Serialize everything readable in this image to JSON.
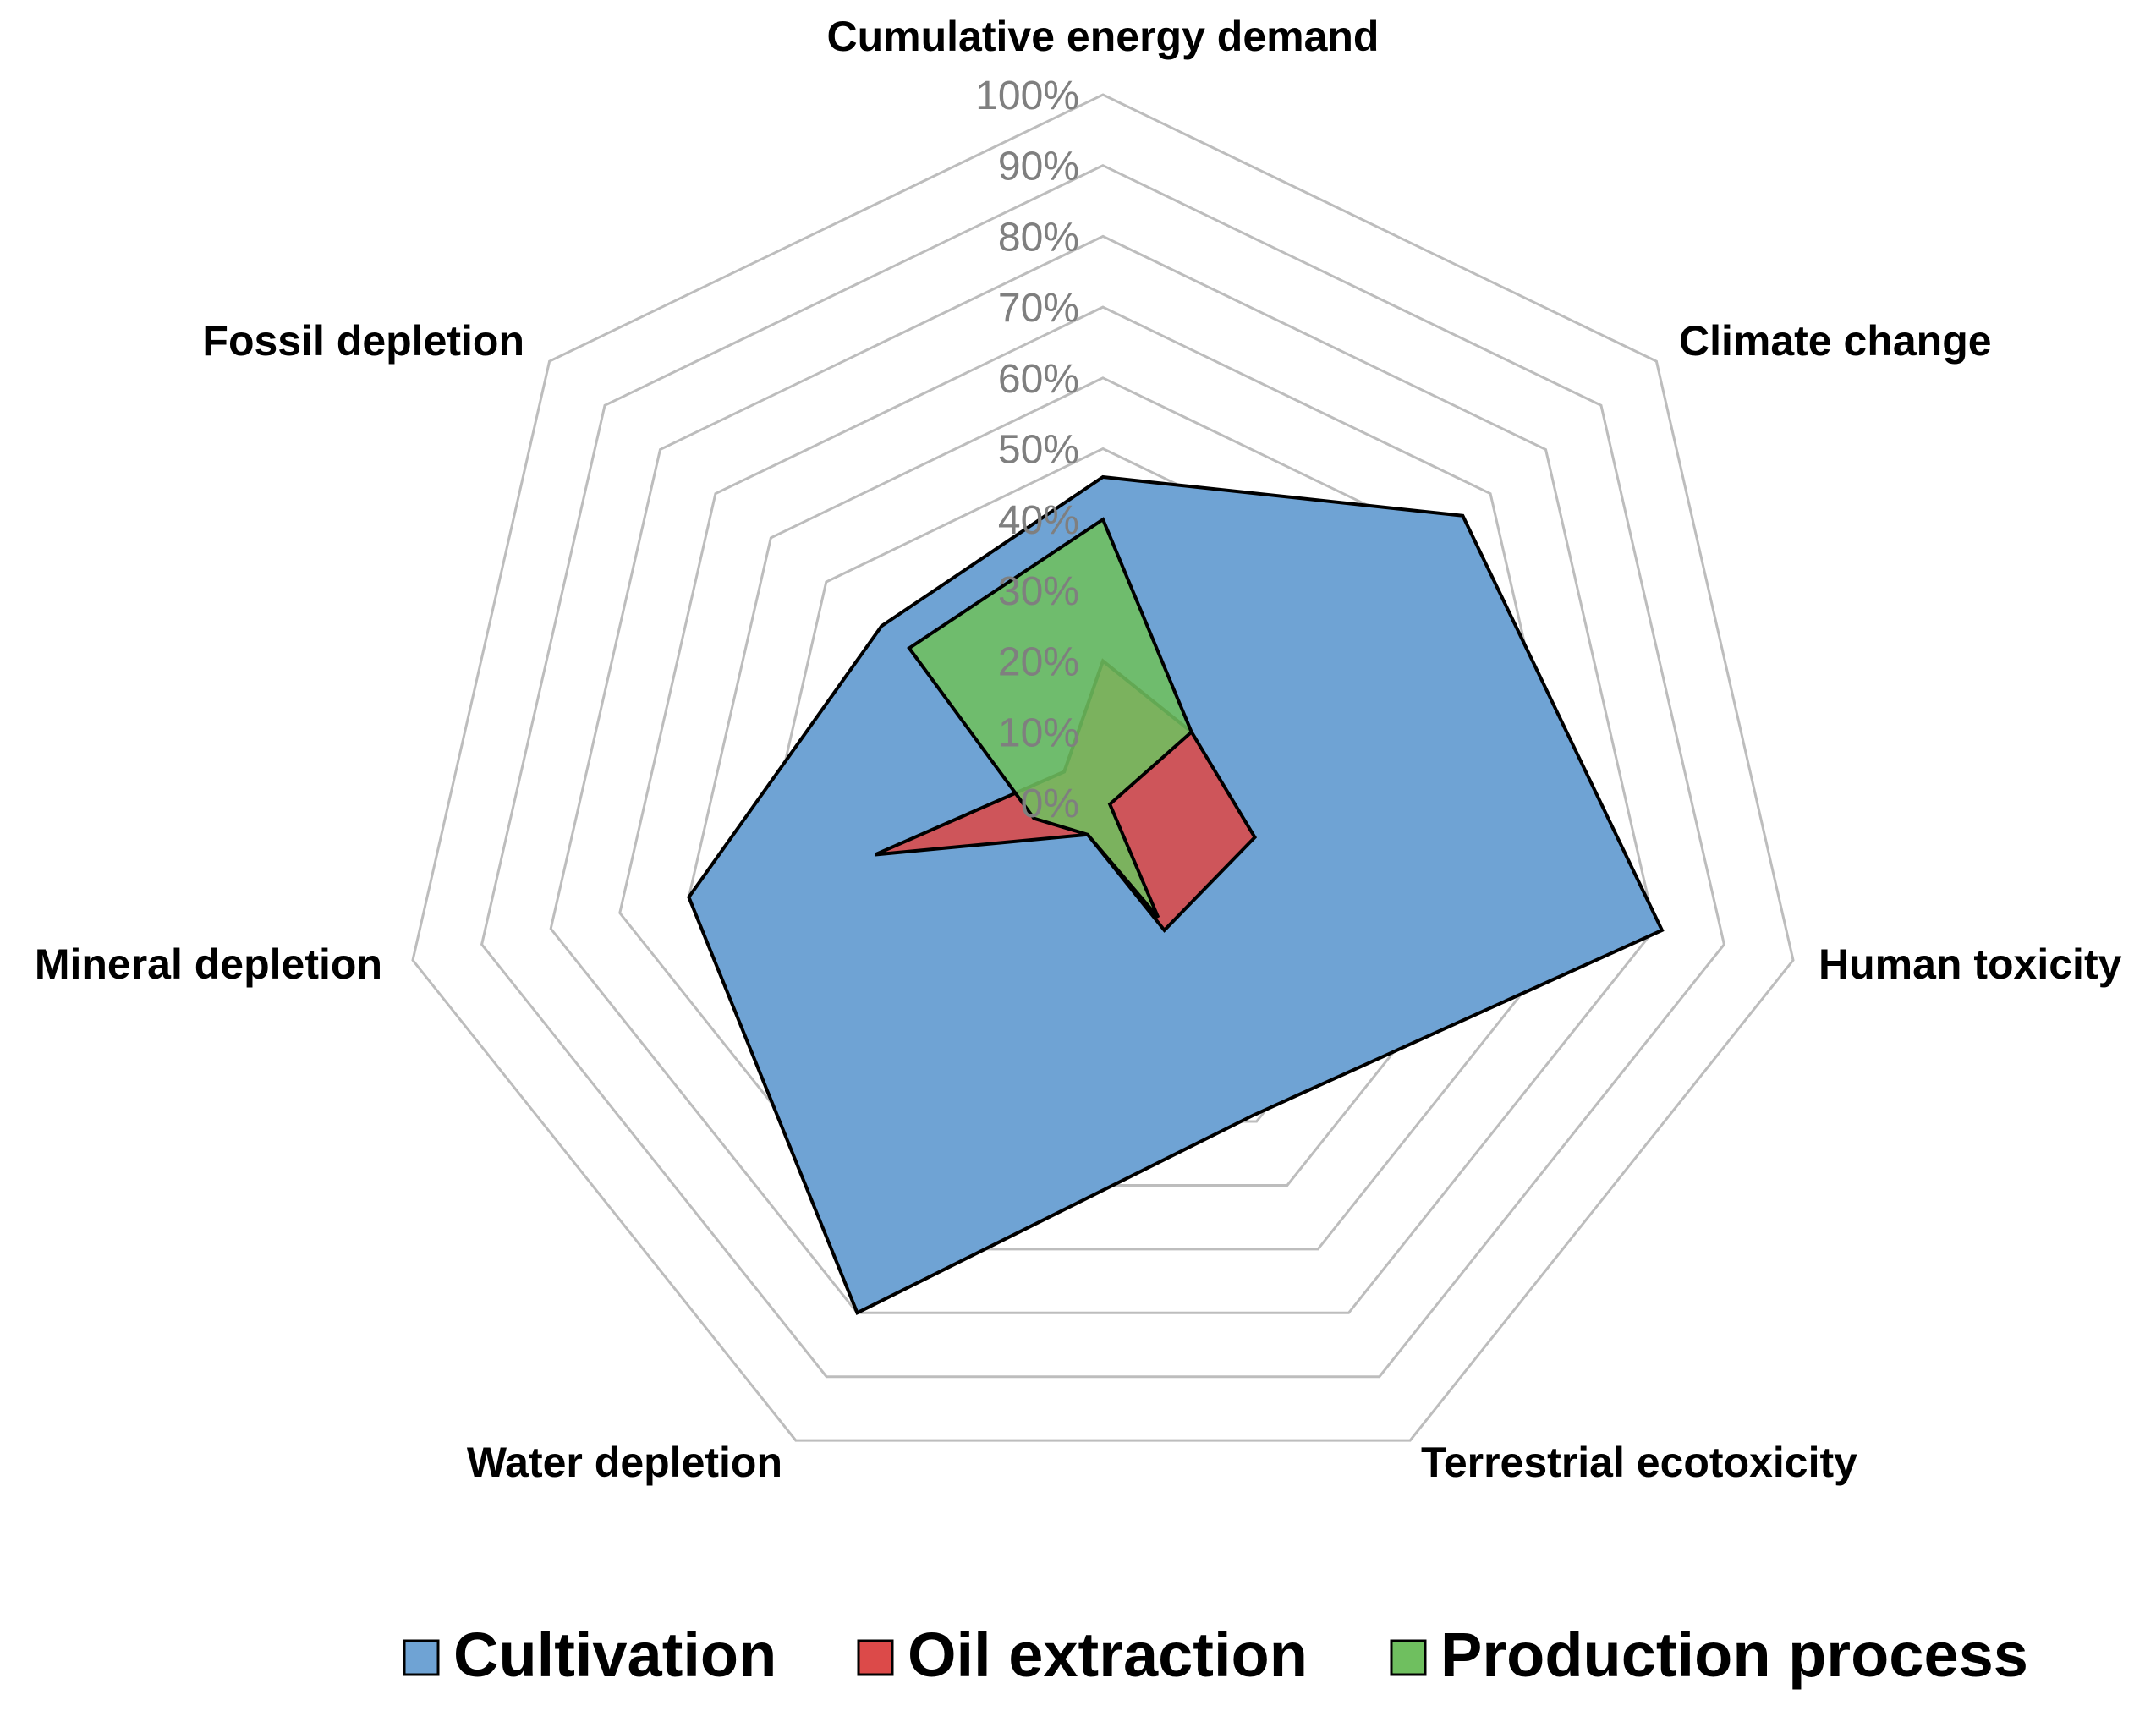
{
  "chart_data": {
    "type": "radar",
    "title": "",
    "axes": [
      "Cumulative energy demand",
      "Climate change",
      "Human toxicity",
      "Terrestrial ecotoxicity",
      "Water depletion",
      "Mineral depletion",
      "Fossil depletion"
    ],
    "tick_labels": [
      "0%",
      "10%",
      "20%",
      "30%",
      "40%",
      "50%",
      "60%",
      "70%",
      "80%",
      "90%",
      "100%"
    ],
    "r_range": [
      0,
      100
    ],
    "grid": true,
    "legend_position": "bottom",
    "series": [
      {
        "name": "Cultivation",
        "color": "#6fa3d4",
        "values": [
          46,
          65,
          81,
          49,
          80,
          60,
          40
        ]
      },
      {
        "name": "Oil extraction",
        "color": "#dc4a49",
        "values": [
          20,
          16,
          22,
          20,
          5,
          33,
          7
        ]
      },
      {
        "name": "Production process",
        "color": "#6fbf5f",
        "values": [
          40,
          16,
          1,
          18,
          5,
          10,
          35
        ]
      }
    ],
    "legend": [
      "Cultivation",
      "Oil extraction",
      "Production process"
    ]
  }
}
